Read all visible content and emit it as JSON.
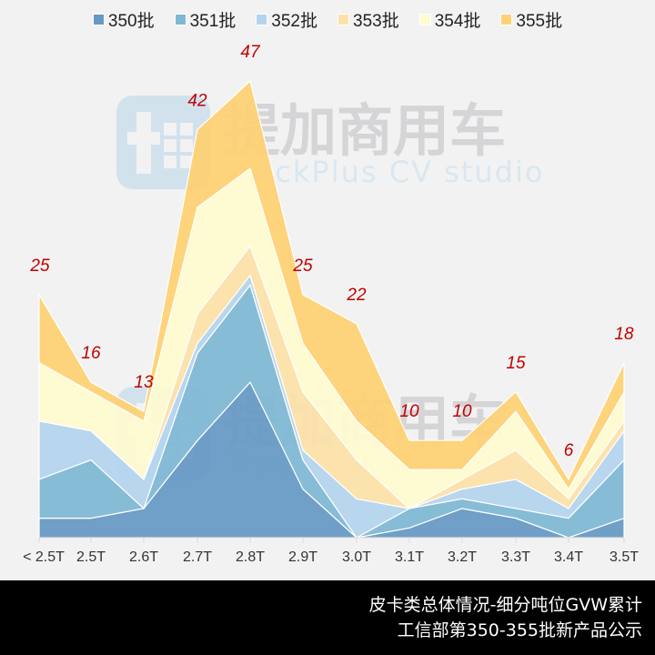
{
  "chart_data": {
    "type": "area",
    "stacked": true,
    "title": "皮卡类总体情况-细分吨位GVW累计",
    "subtitle": "工信部第350-355批新产品公示",
    "xlabel": "",
    "ylabel": "",
    "ylim": [
      0,
      50
    ],
    "grid": false,
    "legend_position": "top",
    "categories": [
      "< 2.5T",
      "2.5T",
      "2.6T",
      "2.7T",
      "2.8T",
      "2.9T",
      "3.0T",
      "3.1T",
      "3.2T",
      "3.3T",
      "3.4T",
      "3.5T"
    ],
    "series": [
      {
        "name": "350批",
        "color": "#6699c4",
        "values": [
          2,
          2,
          3,
          10,
          16,
          5,
          0,
          1,
          3,
          2,
          0,
          2
        ]
      },
      {
        "name": "351批",
        "color": "#7fb8d4",
        "values": [
          4,
          6,
          0,
          9,
          10,
          3,
          0,
          2,
          1,
          1,
          2,
          6
        ]
      },
      {
        "name": "352批",
        "color": "#b4d4ee",
        "values": [
          6,
          3,
          3,
          1,
          1,
          1,
          4,
          0,
          1,
          3,
          1,
          3
        ]
      },
      {
        "name": "353批",
        "color": "#fde1a8",
        "values": [
          0,
          0,
          0,
          3,
          3,
          6,
          4,
          0,
          1,
          3,
          1,
          1
        ]
      },
      {
        "name": "354批",
        "color": "#fffbd0",
        "values": [
          6,
          4,
          6,
          11,
          8,
          5,
          4,
          4,
          1,
          4,
          1,
          3
        ]
      },
      {
        "name": "355批",
        "color": "#fed173",
        "values": [
          7,
          1,
          1,
          8,
          9,
          5,
          10,
          3,
          3,
          2,
          1,
          3
        ]
      }
    ],
    "totals": [
      25,
      16,
      13,
      42,
      47,
      25,
      22,
      10,
      10,
      15,
      6,
      18
    ],
    "annotations": "Total labels in dark red italic above each category"
  },
  "watermark": {
    "cn": "提加商用车",
    "en": "TruckPlus CV studio"
  },
  "footer": {
    "line1": "皮卡类总体情况-细分吨位GVW累计",
    "line2": "工信部第350-355批新产品公示"
  },
  "colors": {
    "background": "#f2f2f2",
    "label": "#c00000",
    "footer_bg": "#000000"
  }
}
